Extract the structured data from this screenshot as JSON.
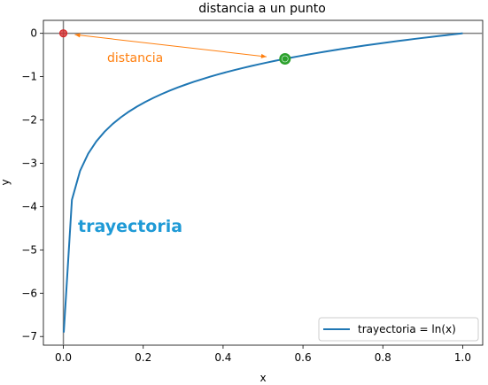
{
  "chart_data": {
    "type": "line",
    "title": "distancia a un punto",
    "xlabel": "x",
    "ylabel": "y",
    "xlim": [
      -0.05,
      1.05
    ],
    "ylim": [
      -7.2,
      0.3
    ],
    "xticks": [
      0.0,
      0.2,
      0.4,
      0.6,
      0.8,
      1.0
    ],
    "xtick_labels": [
      "0.0",
      "0.2",
      "0.4",
      "0.6",
      "0.8",
      "1.0"
    ],
    "yticks": [
      0,
      -1,
      -2,
      -3,
      -4,
      -5,
      -6,
      -7
    ],
    "ytick_labels": [
      "0",
      "−1",
      "−2",
      "−3",
      "−4",
      "−5",
      "−6",
      "−7"
    ],
    "grid": false,
    "legend_position": "lower-right",
    "series": [
      {
        "name": "trayectoria = ln(x)",
        "function": "ln(x)",
        "x_range": [
          0.001,
          1.0
        ],
        "color": "#1f77b4"
      }
    ],
    "reference_lines": {
      "horizontal_y": 0,
      "vertical_x": 0,
      "color": "#808080"
    },
    "points": [
      {
        "label": "origin",
        "x": 0.0,
        "y": 0.0,
        "color": "#d62728"
      },
      {
        "label": "point on curve",
        "x": 0.555,
        "y": -0.589,
        "color": "#2ca02c"
      }
    ],
    "annotations": [
      {
        "text": "distancia",
        "color": "#ff7f0e",
        "kind": "double-arrow",
        "from": [
          0.555,
          -0.589
        ],
        "to": [
          0.0,
          0.0
        ]
      },
      {
        "text": "trayectoria",
        "color": "#1f9ad6"
      }
    ]
  }
}
